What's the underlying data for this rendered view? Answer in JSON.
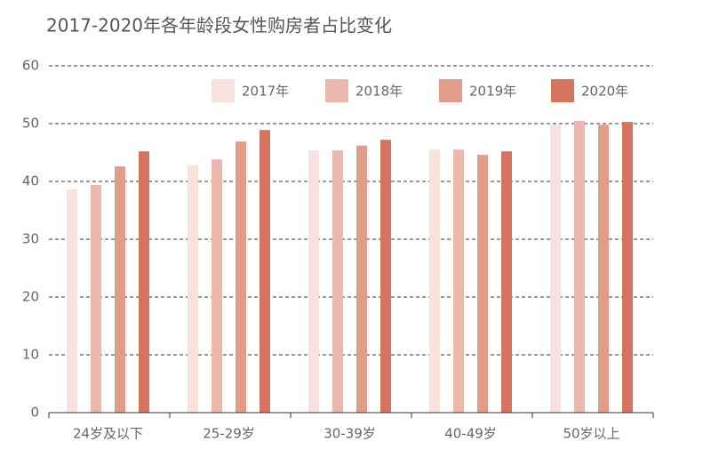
{
  "chart_data": {
    "type": "bar",
    "title": "2017-2020年各年龄段女性购房者占比变化",
    "categories": [
      "24岁及以下",
      "25-29岁",
      "30-39岁",
      "40-49岁",
      "50岁以上"
    ],
    "series": [
      {
        "name": "2017年",
        "color": "#f9e2de",
        "values": [
          38.6,
          42.8,
          45.4,
          45.5,
          49.8
        ]
      },
      {
        "name": "2018年",
        "color": "#ecb8ad",
        "values": [
          39.4,
          43.8,
          45.4,
          45.5,
          50.5
        ]
      },
      {
        "name": "2019年",
        "color": "#e29c8c",
        "values": [
          42.6,
          46.9,
          46.2,
          44.6,
          49.8
        ]
      },
      {
        "name": "2020年",
        "color": "#d57560",
        "values": [
          45.2,
          48.9,
          47.2,
          45.2,
          50.3
        ]
      }
    ],
    "ylim": [
      0,
      60
    ],
    "yticks": [
      0,
      10,
      20,
      30,
      40,
      50,
      60
    ],
    "grid": true,
    "legend": "top-right"
  }
}
